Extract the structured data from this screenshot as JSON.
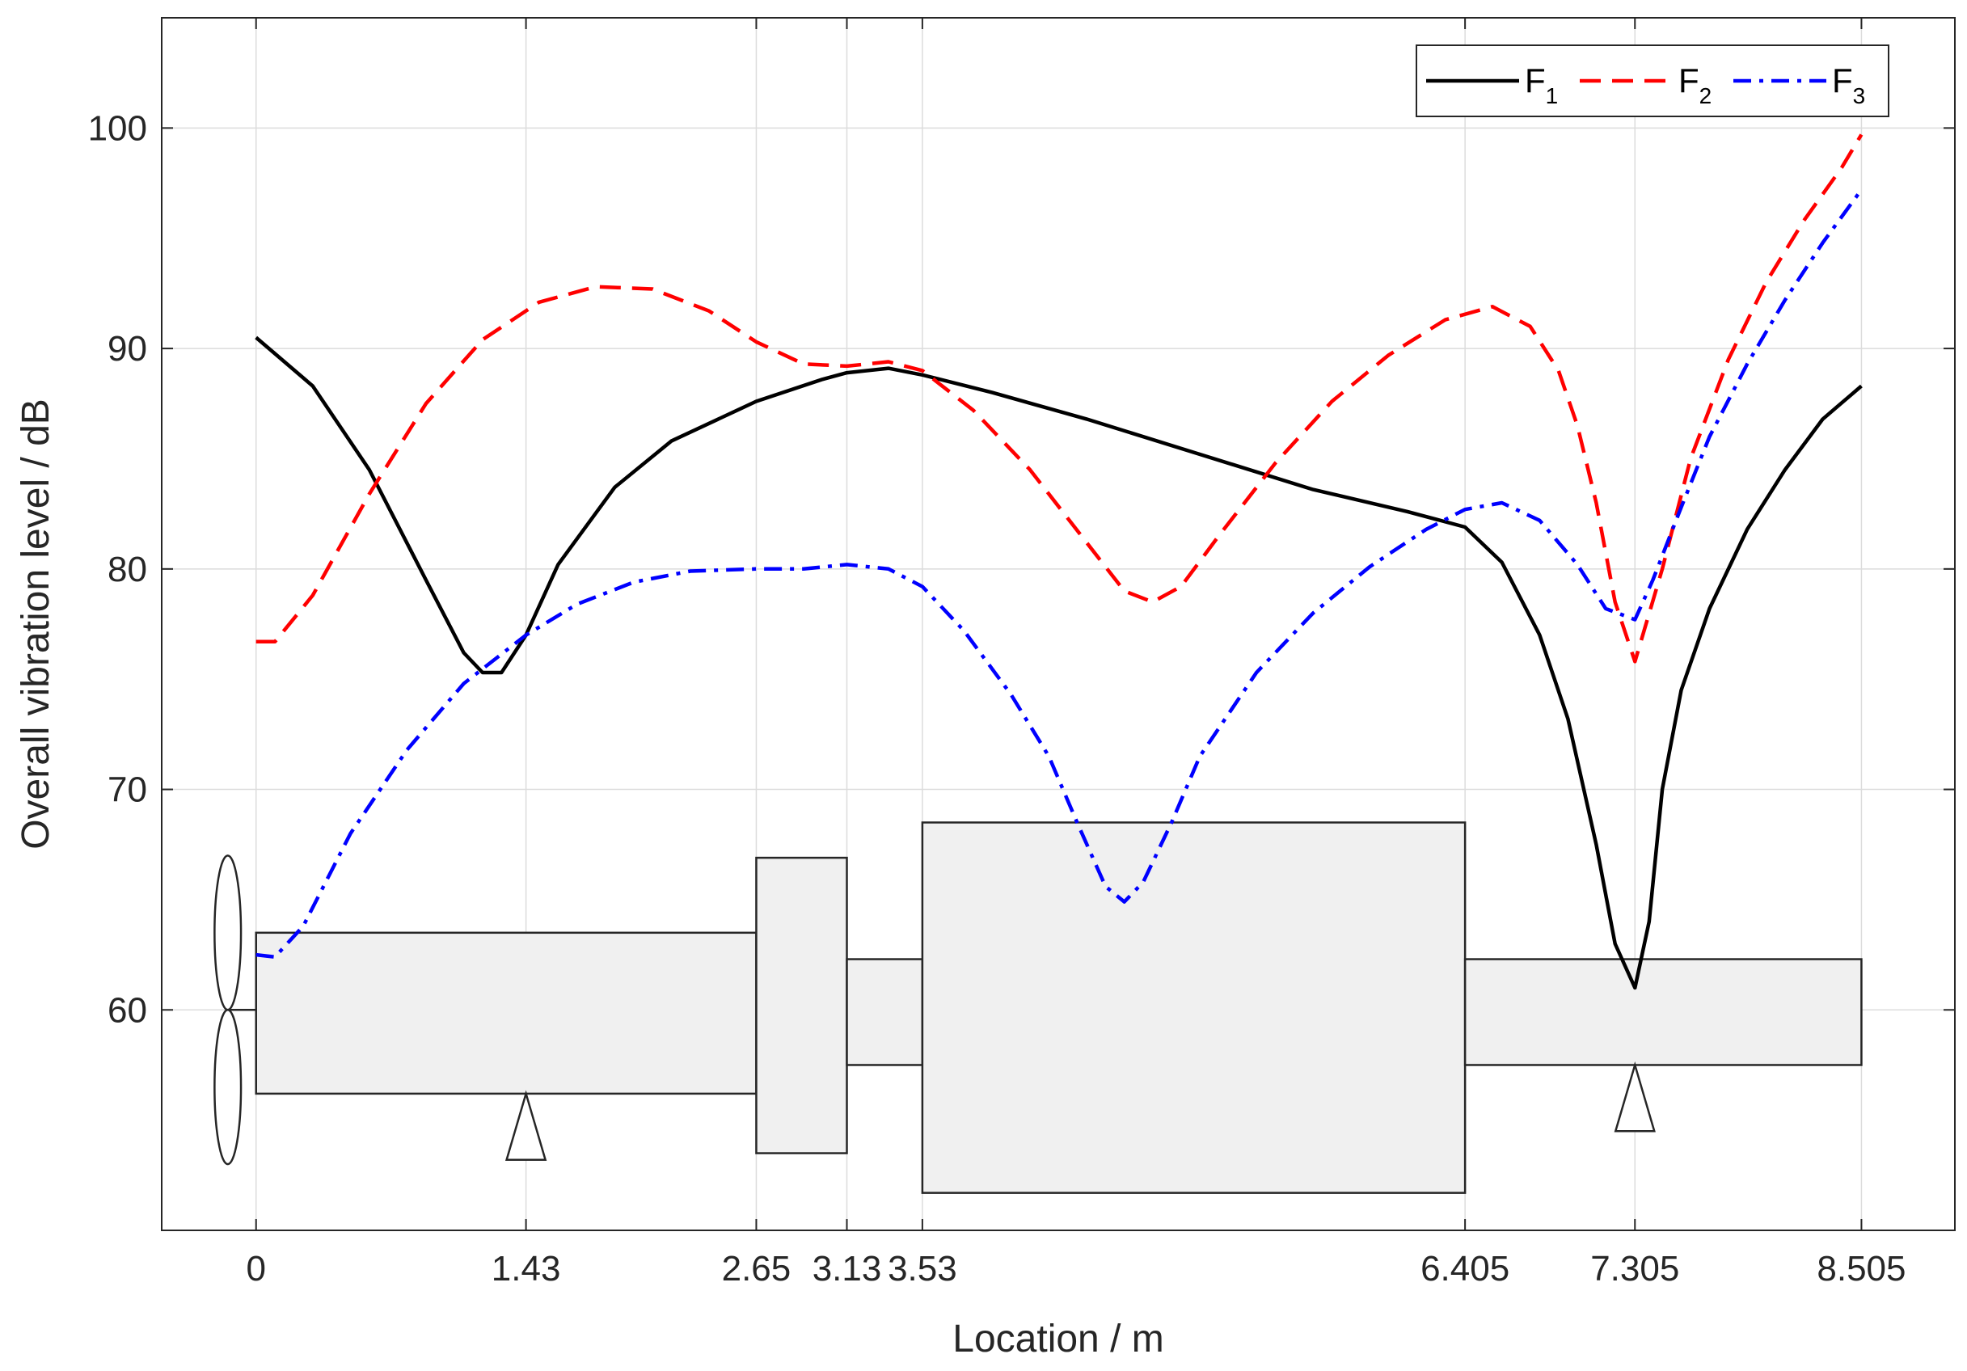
{
  "chart_data": {
    "type": "line",
    "title": "",
    "xlabel": "Location / m",
    "ylabel": "Overall vibration level / dB",
    "xlim": [
      -0.5,
      9.0
    ],
    "ylim": [
      50.0,
      105.0
    ],
    "x_ticks": [
      0,
      1.43,
      2.65,
      3.13,
      3.53,
      6.405,
      7.305,
      8.505
    ],
    "x_tick_labels": [
      "0",
      "1.43",
      "2.65",
      "3.13",
      "3.53",
      "6.405",
      "7.305",
      "8.505"
    ],
    "y_ticks": [
      60,
      70,
      80,
      90,
      100
    ],
    "y_tick_labels": [
      "60",
      "70",
      "80",
      "90",
      "100"
    ],
    "grid": true,
    "legend_position": "top-right",
    "legend_orientation": "horizontal",
    "series": [
      {
        "name": "F",
        "subscript": "1",
        "color": "#000000",
        "style": "solid",
        "x": [
          0,
          0.3,
          0.6,
          0.9,
          1.1,
          1.2,
          1.3,
          1.43,
          1.6,
          1.9,
          2.2,
          2.65,
          3.0,
          3.13,
          3.35,
          3.53,
          3.9,
          4.4,
          5.0,
          5.6,
          6.1,
          6.405,
          6.6,
          6.8,
          6.95,
          7.1,
          7.2,
          7.305,
          7.38,
          7.45,
          7.55,
          7.7,
          7.9,
          8.1,
          8.3,
          8.505
        ],
        "y": [
          90.5,
          88.3,
          84.5,
          79.5,
          76.2,
          75.3,
          75.3,
          77.0,
          80.2,
          83.7,
          85.8,
          87.6,
          88.6,
          88.9,
          89.1,
          88.8,
          88.0,
          86.8,
          85.2,
          83.6,
          82.6,
          81.9,
          80.3,
          77.0,
          73.2,
          67.5,
          63.0,
          61.0,
          64.0,
          70.0,
          74.5,
          78.2,
          81.8,
          84.5,
          86.8,
          88.3
        ]
      },
      {
        "name": "F",
        "subscript": "2",
        "color": "#ff0000",
        "style": "dashed",
        "x": [
          0,
          0.1,
          0.3,
          0.6,
          0.9,
          1.2,
          1.5,
          1.8,
          2.1,
          2.4,
          2.65,
          2.9,
          3.13,
          3.35,
          3.53,
          3.8,
          4.1,
          4.4,
          4.6,
          4.75,
          4.9,
          5.1,
          5.4,
          5.7,
          6.0,
          6.3,
          6.55,
          6.75,
          6.9,
          7.0,
          7.1,
          7.2,
          7.305,
          7.45,
          7.6,
          7.8,
          8.0,
          8.2,
          8.4,
          8.505
        ],
        "y": [
          76.7,
          76.7,
          78.8,
          83.4,
          87.5,
          90.4,
          92.1,
          92.8,
          92.7,
          91.7,
          90.3,
          89.3,
          89.2,
          89.4,
          89.0,
          87.2,
          84.5,
          81.2,
          79.0,
          78.5,
          79.2,
          81.5,
          84.8,
          87.6,
          89.7,
          91.3,
          91.9,
          91.0,
          89.0,
          86.5,
          83.0,
          78.5,
          75.8,
          80.0,
          85.0,
          89.5,
          93.0,
          95.8,
          98.2,
          99.7
        ]
      },
      {
        "name": "F",
        "subscript": "3",
        "color": "#0000ff",
        "style": "dashdot",
        "x": [
          0,
          0.1,
          0.25,
          0.5,
          0.8,
          1.1,
          1.43,
          1.7,
          2.0,
          2.3,
          2.65,
          2.9,
          3.13,
          3.35,
          3.53,
          3.75,
          4.0,
          4.2,
          4.35,
          4.5,
          4.6,
          4.7,
          4.85,
          5.0,
          5.3,
          5.6,
          5.9,
          6.2,
          6.405,
          6.6,
          6.8,
          7.0,
          7.15,
          7.305,
          7.4,
          7.55,
          7.7,
          7.9,
          8.1,
          8.3,
          8.505
        ],
        "y": [
          62.5,
          62.4,
          63.8,
          68.0,
          71.8,
          74.8,
          77.0,
          78.4,
          79.4,
          79.9,
          80.0,
          80.0,
          80.2,
          80.0,
          79.2,
          77.2,
          74.3,
          71.5,
          68.5,
          65.6,
          64.9,
          65.8,
          68.5,
          71.5,
          75.3,
          78.0,
          80.1,
          81.8,
          82.7,
          83.0,
          82.2,
          80.2,
          78.2,
          77.7,
          79.5,
          82.8,
          86.0,
          89.3,
          92.2,
          94.8,
          97.2
        ]
      }
    ],
    "schematic": {
      "boxes": [
        {
          "x0": 0,
          "x1": 2.65,
          "y0": 56.2,
          "y1": 63.5
        },
        {
          "x0": 2.65,
          "x1": 3.13,
          "y0": 53.5,
          "y1": 66.9
        },
        {
          "x0": 3.13,
          "x1": 3.53,
          "y0": 57.5,
          "y1": 62.3
        },
        {
          "x0": 3.53,
          "x1": 6.405,
          "y0": 51.7,
          "y1": 68.5
        },
        {
          "x0": 6.405,
          "x1": 8.505,
          "y0": 57.5,
          "y1": 62.3
        }
      ],
      "supports": [
        {
          "x": 1.43,
          "y_top": 56.2,
          "y_bottom": 53.2
        },
        {
          "x": 7.305,
          "y_top": 57.5,
          "y_bottom": 54.5
        }
      ],
      "propeller": {
        "x": -0.15,
        "y_center": 60.0,
        "half_span": 7.2,
        "ellipse_rx": 0.07,
        "ellipse_ry": 3.5
      },
      "fill_color": "#f0f0f0",
      "stroke_color": "#262626"
    }
  }
}
